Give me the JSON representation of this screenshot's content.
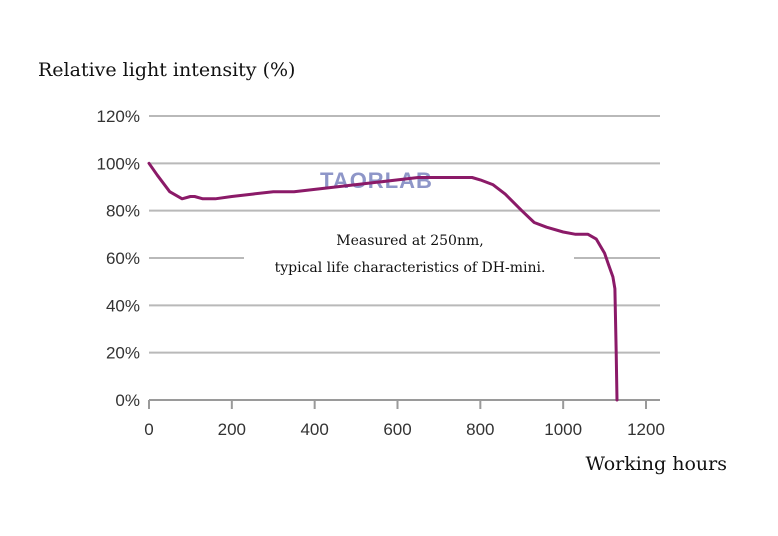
{
  "chart_data": {
    "type": "line",
    "xlabel": "Working hours",
    "ylabel": "Relative light intensity (%)",
    "xlim": [
      0,
      1200
    ],
    "ylim": [
      0,
      120
    ],
    "x_ticks": [
      "0",
      "200",
      "400",
      "600",
      "800",
      "1000",
      "1200"
    ],
    "y_ticks": [
      "0%",
      "20%",
      "40%",
      "60%",
      "80%",
      "100%",
      "120%"
    ],
    "grid": true,
    "annotation": [
      "Measured at 250nm,",
      "typical life characteristics of DH-mini."
    ],
    "watermark": "TAORLAB",
    "series": [
      {
        "color": "#8b1a68",
        "x": [
          0,
          20,
          50,
          80,
          100,
          110,
          130,
          160,
          200,
          250,
          300,
          350,
          400,
          450,
          500,
          550,
          600,
          650,
          700,
          750,
          780,
          800,
          830,
          860,
          900,
          930,
          960,
          1000,
          1030,
          1060,
          1080,
          1100,
          1110,
          1120,
          1125,
          1128,
          1130
        ],
        "y": [
          100,
          95,
          88,
          85,
          86,
          86,
          85,
          85,
          86,
          87,
          88,
          88,
          89,
          90,
          91,
          92,
          93,
          94,
          94,
          94,
          94,
          93,
          91,
          87,
          80,
          75,
          73,
          71,
          70,
          70,
          68,
          62,
          57,
          52,
          47,
          20,
          0
        ]
      }
    ]
  }
}
